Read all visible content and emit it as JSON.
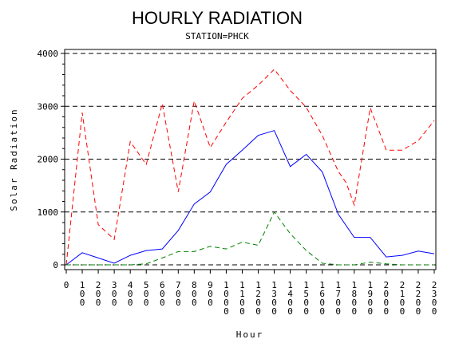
{
  "chart_data": {
    "type": "line",
    "title": "HOURLY RADIATION",
    "subtitle": "STATION=PHCK",
    "xlabel": "Hour",
    "ylabel": "Solar Radiation",
    "ylim": [
      0,
      4000
    ],
    "yticks": [
      0,
      1000,
      2000,
      3000,
      4000
    ],
    "grid": "horizontal-dashed",
    "x": [
      0,
      100,
      200,
      300,
      400,
      500,
      600,
      700,
      800,
      900,
      1000,
      1100,
      1200,
      1300,
      1400,
      1500,
      1600,
      1700,
      1800,
      1900,
      2000,
      2100,
      2200,
      2300
    ],
    "xticks": [
      "0",
      "100",
      "200",
      "300",
      "400",
      "500",
      "600",
      "700",
      "800",
      "900",
      "1000",
      "1100",
      "1200",
      "1300",
      "1400",
      "1500",
      "1600",
      "1700",
      "1800",
      "1900",
      "2000",
      "2100",
      "2200",
      "2300"
    ],
    "series": [
      {
        "color": "#ff0000",
        "style": "dashed",
        "points": [
          [
            0,
            0
          ],
          [
            100,
            2880
          ],
          [
            200,
            760
          ],
          [
            300,
            480
          ],
          [
            400,
            2330
          ],
          [
            500,
            1900
          ],
          [
            600,
            3050
          ],
          [
            700,
            1380
          ],
          [
            800,
            3100
          ],
          [
            900,
            2220
          ],
          [
            1000,
            2700
          ],
          [
            1100,
            3150
          ],
          [
            1200,
            3400
          ],
          [
            1300,
            3700
          ],
          [
            1400,
            3300
          ],
          [
            1500,
            2980
          ],
          [
            1600,
            2450
          ],
          [
            1700,
            1770
          ],
          [
            1750,
            1550
          ],
          [
            1800,
            1130
          ],
          [
            1900,
            2970
          ],
          [
            2000,
            2170
          ],
          [
            2100,
            2170
          ],
          [
            2200,
            2350
          ],
          [
            2300,
            2730
          ]
        ]
      },
      {
        "color": "#0000ff",
        "style": "solid",
        "points": [
          [
            0,
            0
          ],
          [
            100,
            230
          ],
          [
            200,
            130
          ],
          [
            300,
            30
          ],
          [
            400,
            180
          ],
          [
            500,
            270
          ],
          [
            600,
            300
          ],
          [
            700,
            650
          ],
          [
            800,
            1150
          ],
          [
            900,
            1380
          ],
          [
            1000,
            1900
          ],
          [
            1100,
            2170
          ],
          [
            1200,
            2450
          ],
          [
            1300,
            2540
          ],
          [
            1400,
            1860
          ],
          [
            1500,
            2090
          ],
          [
            1600,
            1760
          ],
          [
            1700,
            960
          ],
          [
            1800,
            520
          ],
          [
            1900,
            520
          ],
          [
            2000,
            150
          ],
          [
            2100,
            180
          ],
          [
            2200,
            260
          ],
          [
            2300,
            210
          ]
        ]
      },
      {
        "color": "#008000",
        "style": "dashed",
        "points": [
          [
            0,
            0
          ],
          [
            100,
            0
          ],
          [
            200,
            0
          ],
          [
            300,
            0
          ],
          [
            400,
            0
          ],
          [
            500,
            20
          ],
          [
            600,
            130
          ],
          [
            700,
            250
          ],
          [
            800,
            250
          ],
          [
            900,
            350
          ],
          [
            1000,
            300
          ],
          [
            1100,
            430
          ],
          [
            1200,
            370
          ],
          [
            1300,
            1000
          ],
          [
            1400,
            590
          ],
          [
            1500,
            270
          ],
          [
            1600,
            30
          ],
          [
            1700,
            0
          ],
          [
            1800,
            0
          ],
          [
            1900,
            50
          ],
          [
            2000,
            20
          ],
          [
            2100,
            0
          ],
          [
            2200,
            0
          ],
          [
            2300,
            0
          ]
        ]
      }
    ]
  }
}
